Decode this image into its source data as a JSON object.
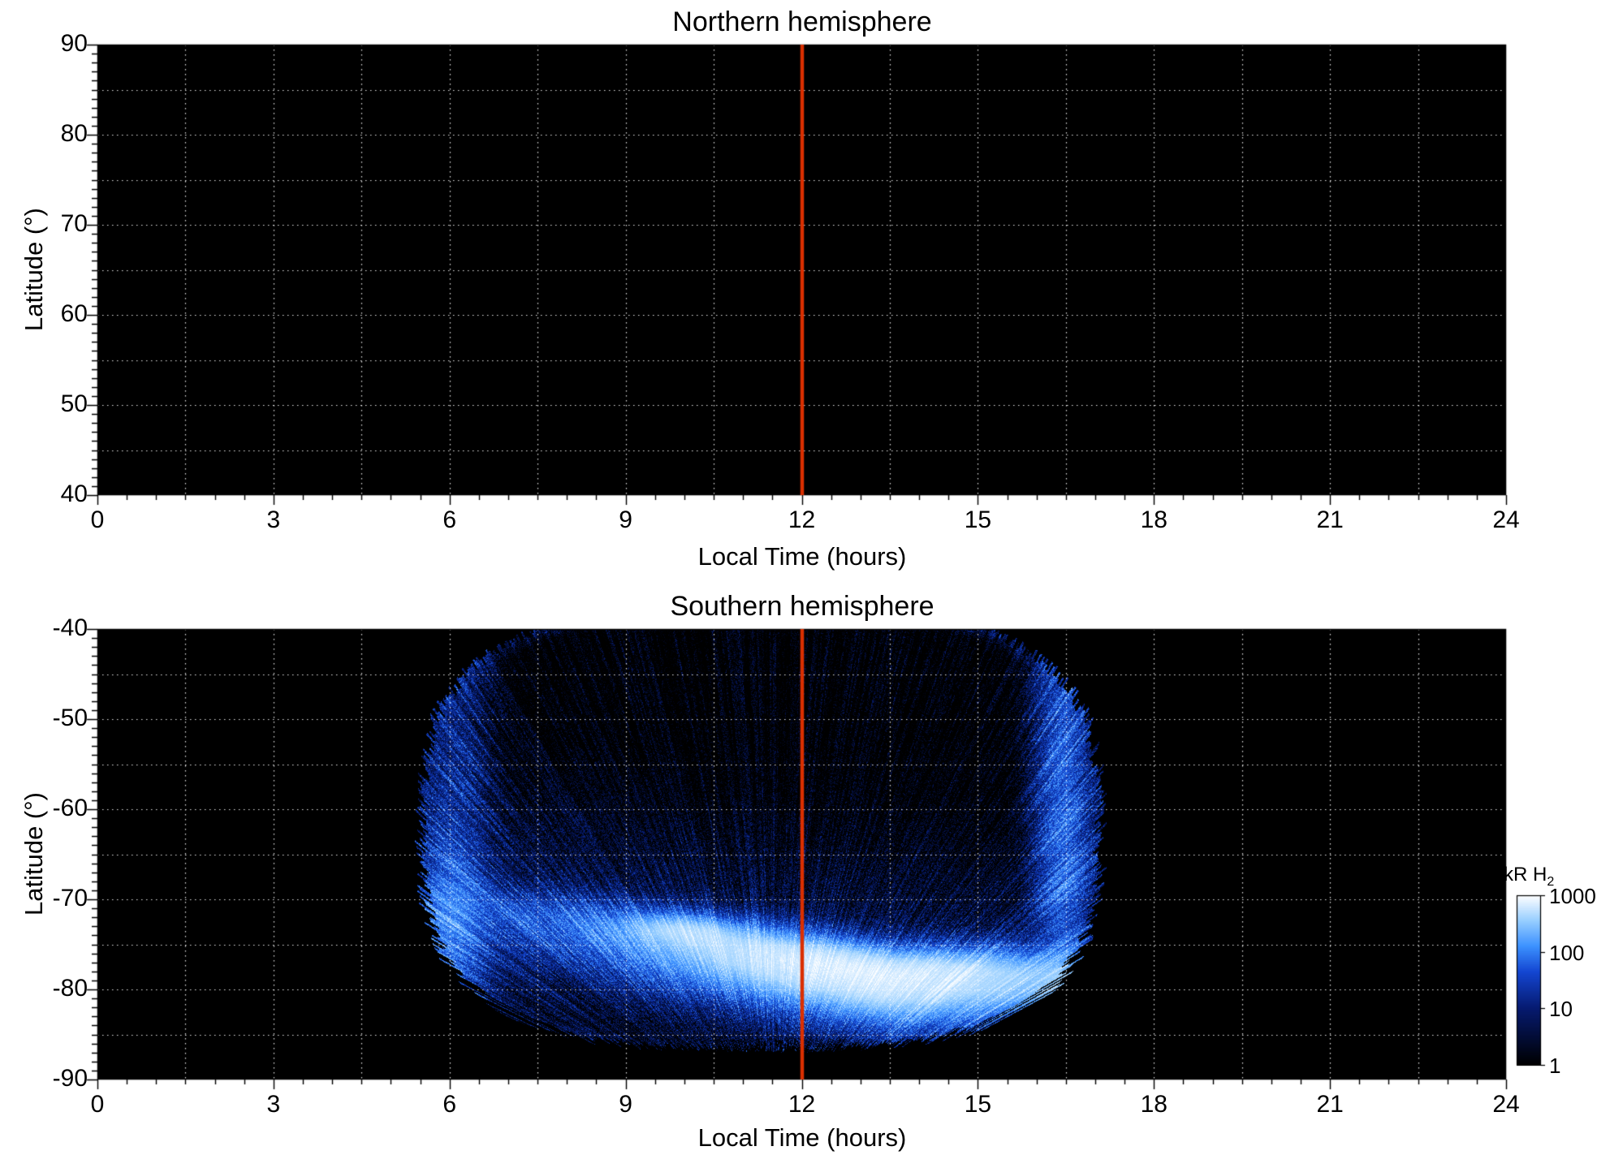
{
  "figure": {
    "colors": {
      "page_bg": "#ffffff",
      "plot_bg": "#000000",
      "grid": "#ffffff",
      "noon_line": "#da2f00",
      "text": "#000000",
      "colormap_stops": [
        [
          0,
          "#000000"
        ],
        [
          0.33,
          "#061a6e"
        ],
        [
          0.55,
          "#1446d2"
        ],
        [
          0.7,
          "#3c91ff"
        ],
        [
          0.85,
          "#96ceff"
        ],
        [
          1,
          "#ffffff"
        ]
      ]
    },
    "panels": [
      {
        "title": "Northern hemisphere",
        "xlabel": "Local Time (hours)",
        "ylabel": "Latitude (°)",
        "xlim": [
          0,
          24
        ],
        "ylim_top": 90,
        "ylim_bottom": 40,
        "x_ticks": [
          "0",
          "3",
          "6",
          "9",
          "12",
          "15",
          "18",
          "21",
          "24"
        ],
        "y_ticks": [
          "90",
          "80",
          "70",
          "60",
          "50",
          "40"
        ],
        "grid_x_step": 1.5,
        "grid_y_step": 5,
        "noon_line_x": 12,
        "has_emission": false
      },
      {
        "title": "Southern hemisphere",
        "xlabel": "Local Time (hours)",
        "ylabel": "Latitude (°)",
        "xlim": [
          0,
          24
        ],
        "ylim_top": -40,
        "ylim_bottom": -90,
        "x_ticks": [
          "0",
          "3",
          "6",
          "9",
          "12",
          "15",
          "18",
          "21",
          "24"
        ],
        "y_ticks": [
          "-40",
          "-50",
          "-60",
          "-70",
          "-80",
          "-90"
        ],
        "grid_x_step": 1.5,
        "grid_y_step": 5,
        "noon_line_x": 12,
        "has_emission": true
      }
    ],
    "colorbar": {
      "label": "kR H",
      "label_sub": "2",
      "ticks": [
        "1000",
        "100",
        "10",
        "1"
      ],
      "scale": "log"
    }
  },
  "chart_data": [
    {
      "type": "heatmap",
      "title": "Northern hemisphere",
      "xlabel": "Local Time (hours)",
      "ylabel": "Latitude (°)",
      "xlim": [
        0,
        24
      ],
      "ylim": [
        40,
        90
      ],
      "x_ticks": [
        0,
        3,
        6,
        9,
        12,
        15,
        18,
        21,
        24
      ],
      "y_ticks": [
        90,
        80,
        70,
        60,
        50,
        40
      ],
      "grid": {
        "x_step_hours": 1.5,
        "y_step_deg": 5,
        "style": "white dotted"
      },
      "noon_line_x": 12,
      "emission": null,
      "note": "No H2 emission visible; entire panel is below 1 kR (black)."
    },
    {
      "type": "heatmap",
      "title": "Southern hemisphere",
      "xlabel": "Local Time (hours)",
      "ylabel": "Latitude (°)",
      "xlim": [
        0,
        24
      ],
      "ylim": [
        -90,
        -40
      ],
      "x_ticks": [
        0,
        3,
        6,
        9,
        12,
        15,
        18,
        21,
        24
      ],
      "y_ticks": [
        -40,
        -50,
        -60,
        -70,
        -80,
        -90
      ],
      "grid": {
        "x_step_hours": 1.5,
        "y_step_deg": 5,
        "style": "white dotted"
      },
      "noon_line_x": 12,
      "emission": {
        "units": "kR H2",
        "scale": "log",
        "color_range_kR": [
          1,
          1000
        ],
        "local_time_extent": [
          5.5,
          17.1
        ],
        "latitude_extent": [
          -87.5,
          -40
        ],
        "superellipse": {
          "center_lt": 11.3,
          "center_lat": -62,
          "semi_lt": 5.9,
          "semi_lat": 25,
          "exponent": 3
        },
        "main_arc": {
          "lat_dawn": -70.5,
          "lat_noon_dusk": -78.5,
          "ramp_lt": [
            6,
            13.5
          ],
          "base_kR": 80,
          "peak_kR": 930,
          "peak_lt": 13,
          "gauss_sigma_lt": 3.4,
          "sigma_above_deg": 2.6,
          "sigma_below_deg": 4.2
        },
        "bright_spot": {
          "lt": 10.2,
          "lat": -72.5,
          "kR": 500
        },
        "dawn_limb": {
          "lt": 6.05,
          "kR": 180
        },
        "dusk_limb": {
          "lt": 16.45,
          "kR": 170
        },
        "diffuse_speckle_kR": [
          1,
          30
        ],
        "description": "Speckled blue H2 auroral emission filling local times ~5.5-17 h at latitudes -40 to -87 deg, with a bright white arc near -72 to -82 deg (strongest LT 10-16), radial streaked texture fanning from the pole, and limb brightening columns near LT 6 and LT 16.5."
      },
      "colorbar": {
        "label": "kR H2",
        "ticks": [
          1000,
          100,
          10,
          1
        ],
        "scale": "log"
      }
    }
  ]
}
